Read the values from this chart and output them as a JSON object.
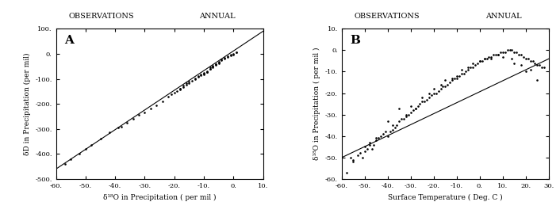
{
  "panel_A": {
    "label": "A",
    "title_left": "OBSERVATIONS",
    "title_right": "ANNUAL",
    "xlabel": "δ¹⁸O in Precipitation ( per mil )",
    "ylabel": "δD in Precipitation (per mil)",
    "xlim": [
      -60,
      10
    ],
    "ylim": [
      -500,
      100
    ],
    "xticks": [
      -60,
      -50,
      -40,
      -30,
      -20,
      -10,
      0,
      10
    ],
    "yticks": [
      -500,
      -400,
      -300,
      -200,
      -100,
      0,
      100
    ],
    "line_x": [
      -60,
      10
    ],
    "line_y": [
      -460,
      90
    ],
    "scatter_x": [
      -57,
      -55,
      -52,
      -50,
      -48,
      -45,
      -42,
      -39,
      -38,
      -36,
      -34,
      -32,
      -30,
      -28,
      -26,
      -24,
      -22,
      -20,
      -19,
      -18,
      -17,
      -16,
      -15,
      -14,
      -13,
      -12,
      -11,
      -10,
      -9,
      -8,
      -7,
      -6,
      -5,
      -4,
      -3,
      -2,
      -1,
      0,
      1,
      -21,
      -18,
      -10,
      -9,
      -8,
      -7,
      -6,
      -5,
      -4,
      -3,
      -2,
      -1,
      0,
      1,
      -11,
      -12,
      -13,
      -15,
      -16,
      -17,
      -18,
      -10,
      -9,
      -8,
      -7,
      -6,
      -5
    ],
    "scatter_y": [
      -440,
      -420,
      -400,
      -380,
      -365,
      -340,
      -315,
      -295,
      -290,
      -275,
      -260,
      -245,
      -235,
      -220,
      -205,
      -190,
      -170,
      -155,
      -148,
      -140,
      -132,
      -124,
      -116,
      -108,
      -100,
      -93,
      -86,
      -79,
      -72,
      -55,
      -48,
      -40,
      -32,
      -24,
      -16,
      -10,
      -6,
      -2,
      5,
      -163,
      -142,
      -82,
      -74,
      -60,
      -50,
      -42,
      -35,
      -27,
      -19,
      -12,
      -5,
      0,
      6,
      -84,
      -90,
      -98,
      -110,
      -118,
      -128,
      -138,
      -76,
      -70,
      -62,
      -54,
      -46,
      -38
    ]
  },
  "panel_B": {
    "label": "B",
    "title_left": "OBSERVATIONS",
    "title_right": "ANNUAL",
    "xlabel": "Surface Temperature ( Deg. C )",
    "ylabel": "δ¹⁸O in Precipitation ( per mil )",
    "xlim": [
      -60,
      30
    ],
    "ylim": [
      -60,
      10
    ],
    "xticks": [
      -60,
      -50,
      -40,
      -30,
      -20,
      -10,
      0,
      10,
      20,
      30
    ],
    "yticks": [
      -60,
      -50,
      -40,
      -30,
      -20,
      -10,
      0,
      10
    ],
    "line_x": [
      -60,
      30
    ],
    "line_y": [
      -50,
      -4
    ],
    "scatter_x": [
      -56,
      -55,
      -53,
      -52,
      -51,
      -50,
      -49,
      -48,
      -47,
      -46,
      -45,
      -44,
      -43,
      -42,
      -41,
      -40,
      -39,
      -38,
      -37,
      -36,
      -35,
      -34,
      -33,
      -32,
      -31,
      -30,
      -29,
      -28,
      -27,
      -26,
      -25,
      -24,
      -23,
      -22,
      -21,
      -20,
      -19,
      -18,
      -17,
      -16,
      -15,
      -14,
      -13,
      -12,
      -11,
      -10,
      -9,
      -8,
      -7,
      -6,
      -5,
      -4,
      -3,
      -2,
      -1,
      0,
      1,
      2,
      3,
      4,
      5,
      6,
      7,
      8,
      9,
      10,
      11,
      12,
      13,
      14,
      15,
      16,
      17,
      18,
      19,
      20,
      21,
      22,
      23,
      24,
      25,
      26,
      27,
      28,
      -55,
      -50,
      -48,
      -40,
      -35,
      -30,
      -25,
      -20,
      -15,
      -10,
      -5,
      0,
      5,
      10,
      15,
      20,
      25,
      -58,
      -45,
      -38,
      -32,
      -28,
      -22,
      -17,
      -12,
      -8,
      -3,
      2,
      8,
      14,
      18,
      22
    ],
    "scatter_y": [
      -50,
      -52,
      -49,
      -48,
      -50,
      -47,
      -46,
      -44,
      -46,
      -44,
      -42,
      -41,
      -40,
      -39,
      -38,
      -40,
      -38,
      -37,
      -36,
      -35,
      -33,
      -32,
      -32,
      -31,
      -30,
      -29,
      -28,
      -27,
      -26,
      -25,
      -24,
      -24,
      -23,
      -22,
      -21,
      -20,
      -20,
      -19,
      -18,
      -17,
      -17,
      -16,
      -15,
      -14,
      -13,
      -13,
      -12,
      -11,
      -11,
      -10,
      -9,
      -8,
      -8,
      -7,
      -6,
      -5,
      -5,
      -4,
      -4,
      -3,
      -3,
      -2,
      -2,
      -2,
      -1,
      -1,
      -1,
      0,
      0,
      0,
      -1,
      -1,
      -2,
      -2,
      -3,
      -4,
      -4,
      -5,
      -5,
      -6,
      -7,
      -7,
      -8,
      -8,
      -51,
      -45,
      -43,
      -33,
      -27,
      -26,
      -22,
      -18,
      -14,
      -12,
      -8,
      -5,
      -4,
      -3,
      -6,
      -10,
      -14,
      -57,
      -41,
      -35,
      -30,
      -27,
      -20,
      -16,
      -13,
      -9,
      -6,
      -4,
      -2,
      -4,
      -7,
      -9
    ]
  }
}
